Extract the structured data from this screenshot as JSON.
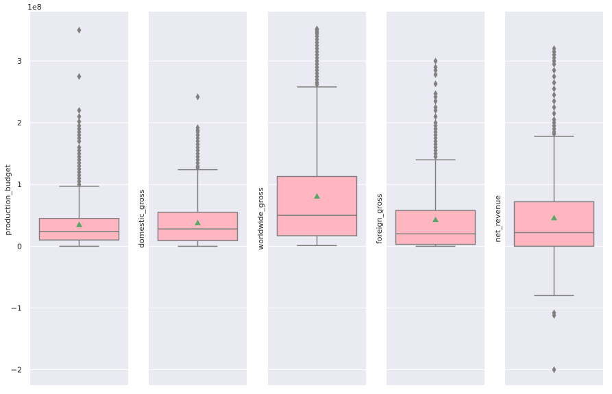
{
  "chart_data": {
    "type": "box",
    "style": {
      "panel_background": "#EAEAF2",
      "grid_color": "#FFFFFF",
      "box_fill": "#FFB6C1",
      "line_color": "#808080",
      "mean_marker_color": "#55A868",
      "figure_background": "#FFFFFF"
    },
    "shared_y": {
      "offset_label": "1e8",
      "ticks": [
        -2,
        -1,
        0,
        1,
        2,
        3
      ],
      "tick_labels": [
        "−2",
        "−1",
        "0",
        "1",
        "2",
        "3"
      ],
      "ylim": [
        -2.25,
        3.8
      ],
      "grid": true
    },
    "panels": [
      {
        "ylabel": "production_budget",
        "whisker_low": 0.0,
        "q1": 0.1,
        "median": 0.24,
        "q3": 0.45,
        "whisker_high": 0.97,
        "mean": 0.35,
        "outliers": [
          3.5,
          2.75,
          2.2,
          2.1,
          2.02,
          1.95,
          1.9,
          1.85,
          1.8,
          1.75,
          1.7,
          1.6,
          1.55,
          1.5,
          1.45,
          1.4,
          1.35,
          1.3,
          1.25,
          1.2,
          1.15,
          1.1,
          1.05,
          1.0
        ]
      },
      {
        "ylabel": "domestic_gross",
        "whisker_low": 0.0,
        "q1": 0.09,
        "median": 0.28,
        "q3": 0.55,
        "whisker_high": 1.24,
        "mean": 0.38,
        "outliers": [
          2.42,
          1.92,
          1.88,
          1.85,
          1.8,
          1.75,
          1.7,
          1.65,
          1.6,
          1.55,
          1.5,
          1.45,
          1.4,
          1.35,
          1.3,
          1.27
        ]
      },
      {
        "ylabel": "worldwide_gross",
        "whisker_low": 0.01,
        "q1": 0.17,
        "median": 0.5,
        "q3": 1.13,
        "whisker_high": 2.58,
        "mean": 0.81,
        "outliers": [
          3.52,
          3.5,
          3.47,
          3.44,
          3.4,
          3.35,
          3.3,
          3.25,
          3.2,
          3.15,
          3.1,
          3.05,
          3.0,
          2.95,
          2.9,
          2.85,
          2.8,
          2.75,
          2.7,
          2.65,
          2.62
        ]
      },
      {
        "ylabel": "foreign_gross",
        "whisker_low": 0.0,
        "q1": 0.03,
        "median": 0.2,
        "q3": 0.58,
        "whisker_high": 1.4,
        "mean": 0.43,
        "outliers": [
          3.0,
          2.9,
          2.85,
          2.78,
          2.63,
          2.47,
          2.42,
          2.35,
          2.25,
          2.2,
          2.1,
          2.0,
          1.95,
          1.9,
          1.85,
          1.8,
          1.75,
          1.7,
          1.65,
          1.6,
          1.55,
          1.5,
          1.45
        ]
      },
      {
        "ylabel": "net_revenue",
        "whisker_low": -0.8,
        "q1": 0.0,
        "median": 0.22,
        "q3": 0.72,
        "whisker_high": 1.78,
        "mean": 0.46,
        "outliers": [
          3.2,
          3.15,
          3.1,
          3.05,
          3.0,
          2.95,
          2.85,
          2.75,
          2.65,
          2.55,
          2.45,
          2.35,
          2.25,
          2.15,
          2.05,
          2.0,
          1.95,
          1.9,
          1.85,
          1.82,
          -1.08,
          -1.12,
          -2.0
        ]
      }
    ]
  }
}
